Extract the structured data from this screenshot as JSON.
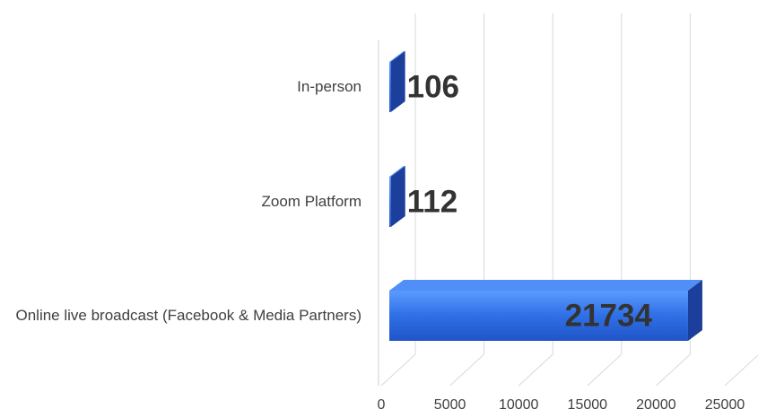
{
  "chart_data": {
    "type": "bar",
    "orientation": "horizontal",
    "categories": [
      "In-person",
      "Zoom Platform",
      "Online live broadcast (Facebook & Media Partners)"
    ],
    "values": [
      106,
      112,
      21734
    ],
    "color": "#2f6fe6",
    "xlim": [
      0,
      25000
    ],
    "xticks": [
      0,
      5000,
      10000,
      15000,
      20000,
      25000
    ],
    "grid": true
  }
}
